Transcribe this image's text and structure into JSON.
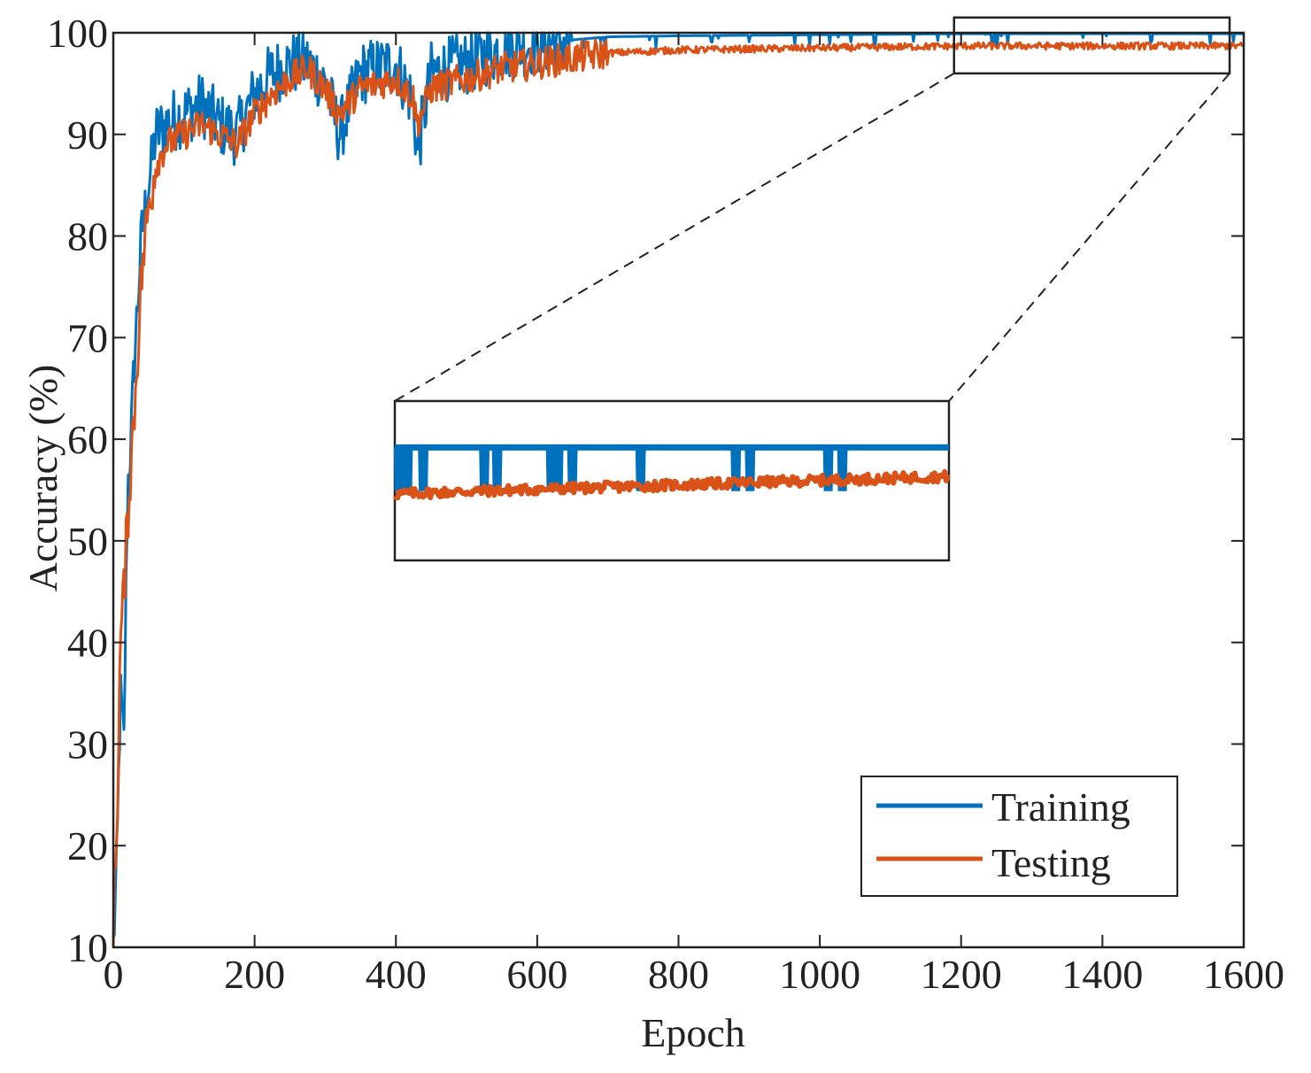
{
  "chart_data": {
    "type": "line",
    "title": "",
    "xlabel": "Epoch",
    "ylabel": "Accuracy (%)",
    "xlim": [
      0,
      1600
    ],
    "ylim": [
      10,
      100
    ],
    "xticks": [
      0,
      200,
      400,
      600,
      800,
      1000,
      1200,
      1400,
      1600
    ],
    "yticks": [
      10,
      20,
      30,
      40,
      50,
      60,
      70,
      80,
      90,
      100
    ],
    "xtick_labels": [
      "0",
      "200",
      "400",
      "600",
      "800",
      "1000",
      "1200",
      "1400",
      "1600"
    ],
    "ytick_labels": [
      "10",
      "20",
      "30",
      "40",
      "50",
      "60",
      "70",
      "80",
      "90",
      "100"
    ],
    "grid": false,
    "legend": {
      "position": "bottom-right",
      "entries": [
        "Training",
        "Testing"
      ]
    },
    "series": [
      {
        "name": "Training",
        "color": "#0072BD",
        "x": [
          0,
          5,
          10,
          15,
          20,
          25,
          30,
          40,
          50,
          60,
          75,
          100,
          125,
          150,
          175,
          200,
          225,
          250,
          275,
          300,
          320,
          350,
          400,
          425,
          430,
          450,
          500,
          550,
          600,
          650,
          700,
          800,
          1000,
          1200,
          1400,
          1600
        ],
        "y": [
          10,
          18,
          35,
          30,
          55,
          60,
          68,
          80,
          85,
          90,
          91,
          92,
          93,
          91,
          90,
          94,
          96,
          97,
          97,
          95,
          90,
          96,
          97,
          93,
          88,
          96,
          97,
          98.5,
          99,
          99.3,
          99.6,
          99.7,
          99.8,
          99.9,
          99.9,
          99.9
        ]
      },
      {
        "name": "Testing",
        "color": "#D95319",
        "x": [
          0,
          5,
          10,
          15,
          20,
          25,
          30,
          40,
          50,
          60,
          75,
          100,
          125,
          150,
          175,
          200,
          225,
          250,
          275,
          300,
          320,
          350,
          400,
          425,
          430,
          450,
          500,
          550,
          600,
          650,
          700,
          800,
          1000,
          1200,
          1400,
          1600
        ],
        "y": [
          12,
          22,
          40,
          45,
          52,
          58,
          63,
          76,
          83,
          87,
          89,
          90,
          91,
          90,
          89,
          92,
          94,
          95.5,
          96.5,
          94.5,
          92,
          94.5,
          95.5,
          93.5,
          91,
          94.5,
          95.5,
          96.5,
          97,
          97.5,
          98,
          98.3,
          98.5,
          98.7,
          98.7,
          98.7
        ]
      }
    ],
    "zoom_inset": {
      "source_x_range": [
        1190,
        1580
      ],
      "source_y_range": [
        96,
        101.5
      ],
      "training_dip_count": 10
    }
  }
}
